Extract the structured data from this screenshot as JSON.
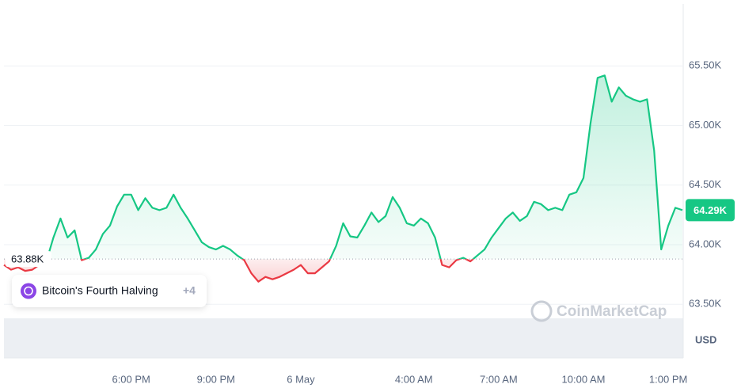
{
  "chart_data": {
    "type": "line",
    "categories": [
      null,
      null,
      null,
      null,
      null,
      null,
      null,
      null,
      null,
      null,
      null,
      null,
      null,
      null,
      null,
      null,
      null,
      null,
      "6:00 PM",
      null,
      null,
      null,
      null,
      null,
      null,
      null,
      null,
      null,
      null,
      null,
      "9:00 PM",
      null,
      null,
      null,
      null,
      null,
      null,
      null,
      null,
      null,
      null,
      null,
      "6 May",
      null,
      null,
      null,
      null,
      null,
      null,
      null,
      null,
      null,
      null,
      null,
      null,
      null,
      null,
      null,
      "4:00 AM",
      null,
      null,
      null,
      null,
      null,
      null,
      null,
      null,
      null,
      null,
      null,
      "7:00 AM",
      null,
      null,
      null,
      null,
      null,
      null,
      null,
      null,
      null,
      null,
      null,
      "10:00 AM",
      null,
      null,
      null,
      null,
      null,
      null,
      null,
      null,
      null,
      null,
      null,
      "1:00 PM",
      null,
      null
    ],
    "series": [
      {
        "name": null,
        "color": "#16c784",
        "below_color": "#ea3943",
        "values": [
          63830,
          63790,
          63810,
          63780,
          63790,
          63830,
          63860,
          64060,
          64220,
          64060,
          64120,
          63870,
          63890,
          63960,
          64090,
          64160,
          64320,
          64420,
          64420,
          64290,
          64390,
          64310,
          64290,
          64310,
          64420,
          64310,
          64220,
          64120,
          64020,
          63980,
          63960,
          63990,
          63960,
          63910,
          63870,
          63760,
          63690,
          63730,
          63710,
          63730,
          63760,
          63790,
          63830,
          63760,
          63760,
          63810,
          63860,
          63990,
          64180,
          64070,
          64060,
          64160,
          64270,
          64190,
          64240,
          64400,
          64310,
          64180,
          64160,
          64220,
          64180,
          64060,
          63830,
          63810,
          63870,
          63890,
          63860,
          63910,
          63960,
          64060,
          64140,
          64220,
          64270,
          64200,
          64240,
          64360,
          64340,
          64290,
          64310,
          64290,
          64420,
          64440,
          64560,
          65020,
          65400,
          65420,
          65200,
          65320,
          65250,
          65220,
          65200,
          65220,
          64790,
          63960,
          64160,
          64310,
          64290
        ]
      }
    ],
    "ylim": [
      63050,
      66020
    ],
    "yticks": [
      {
        "value": 63500,
        "label": "63.50K"
      },
      {
        "value": 64000,
        "label": "64.00K"
      },
      {
        "value": 64500,
        "label": "64.50K"
      },
      {
        "value": 65000,
        "label": "65.00K"
      },
      {
        "value": 65500,
        "label": "65.50K"
      }
    ],
    "grid": true,
    "baseline": {
      "value": 63880,
      "label": "63.88K"
    },
    "last_price": {
      "value": 64290,
      "label": "64.29K"
    },
    "currency": "USD",
    "event": {
      "label": "Bitcoin's Fourth Halving",
      "more": "+4"
    },
    "watermark": "CoinMarketCap"
  }
}
